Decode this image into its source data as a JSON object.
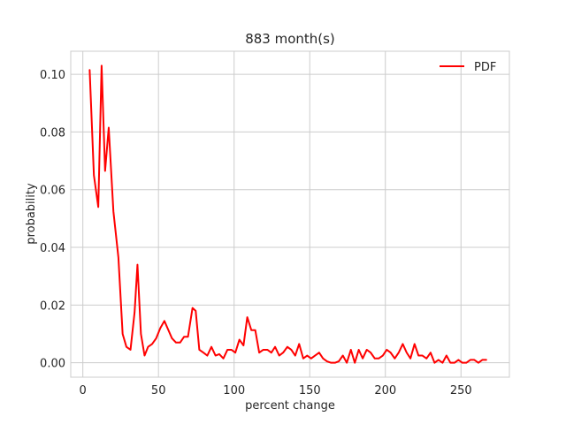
{
  "chart_data": {
    "type": "line",
    "title": "883 month(s)",
    "xlabel": "percent change",
    "ylabel": "probability",
    "xlim": [
      -8,
      282
    ],
    "ylim": [
      -0.005,
      0.108
    ],
    "xticks": [
      0,
      50,
      100,
      150,
      200,
      250
    ],
    "yticks": [
      0.0,
      0.02,
      0.04,
      0.06,
      0.08,
      0.1
    ],
    "xtick_labels": [
      "0",
      "50",
      "100",
      "150",
      "200",
      "250"
    ],
    "ytick_labels": [
      "0.00",
      "0.02",
      "0.04",
      "0.06",
      "0.08",
      "0.10"
    ],
    "grid": true,
    "legend_position": "top-right",
    "series": [
      {
        "name": "PDF",
        "color": "#ff0000",
        "x": [
          4.5,
          7.3,
          10.2,
          12.4,
          14.7,
          17.1,
          20.2,
          23.5,
          26.3,
          28.8,
          31.5,
          34.2,
          36.1,
          38.4,
          40.8,
          43.1,
          45.8,
          48.5,
          51.2,
          53.9,
          56.4,
          58.9,
          61.6,
          64.3,
          66.9,
          69.5,
          72.5,
          74.6,
          77.0,
          79.7,
          82.3,
          85.0,
          87.7,
          90.2,
          92.9,
          95.6,
          98.2,
          100.8,
          103.5,
          106.2,
          108.7,
          111.4,
          114.0,
          116.6,
          119.3,
          122.0,
          124.6,
          127.1,
          129.8,
          132.4,
          135.2,
          137.8,
          140.4,
          143.0,
          145.7,
          148.3,
          150.9,
          153.5,
          156.2,
          158.8,
          161.4,
          164.1,
          166.7,
          169.2,
          171.9,
          174.5,
          177.2,
          179.8,
          182.4,
          185.0,
          187.7,
          190.3,
          193.0,
          195.6,
          198.3,
          200.9,
          203.5,
          206.2,
          208.8,
          211.5,
          214.1,
          216.6,
          219.3,
          221.9,
          224.5,
          227.2,
          229.9,
          232.5,
          235.1,
          237.8,
          240.4,
          243.0,
          245.7,
          248.3,
          250.9,
          253.5,
          256.2,
          258.8,
          261.5,
          264.1,
          266.7
        ],
        "values": [
          0.1015,
          0.065,
          0.054,
          0.103,
          0.0665,
          0.0815,
          0.0525,
          0.0365,
          0.01,
          0.0055,
          0.0045,
          0.0175,
          0.034,
          0.01,
          0.0025,
          0.0055,
          0.0065,
          0.0085,
          0.012,
          0.0145,
          0.0115,
          0.0085,
          0.007,
          0.007,
          0.009,
          0.009,
          0.019,
          0.018,
          0.0045,
          0.0035,
          0.0025,
          0.0055,
          0.0025,
          0.003,
          0.0015,
          0.0045,
          0.0045,
          0.0035,
          0.008,
          0.006,
          0.0158,
          0.0113,
          0.0113,
          0.0035,
          0.0045,
          0.0045,
          0.0035,
          0.0055,
          0.0025,
          0.0035,
          0.0055,
          0.0045,
          0.0025,
          0.0065,
          0.0015,
          0.0025,
          0.0015,
          0.0025,
          0.0035,
          0.0015,
          0.0005,
          0.0,
          0.0,
          0.0005,
          0.0025,
          0.0,
          0.0045,
          0.0,
          0.0045,
          0.0015,
          0.0045,
          0.0035,
          0.0015,
          0.0015,
          0.0025,
          0.0045,
          0.0035,
          0.0015,
          0.0035,
          0.0065,
          0.0035,
          0.0015,
          0.0065,
          0.0025,
          0.0025,
          0.0015,
          0.0035,
          0.0,
          0.001,
          0.0,
          0.0025,
          0.0,
          0.0,
          0.001,
          0.0,
          0.0,
          0.001,
          0.001,
          0.0,
          0.001,
          0.001
        ]
      }
    ]
  }
}
